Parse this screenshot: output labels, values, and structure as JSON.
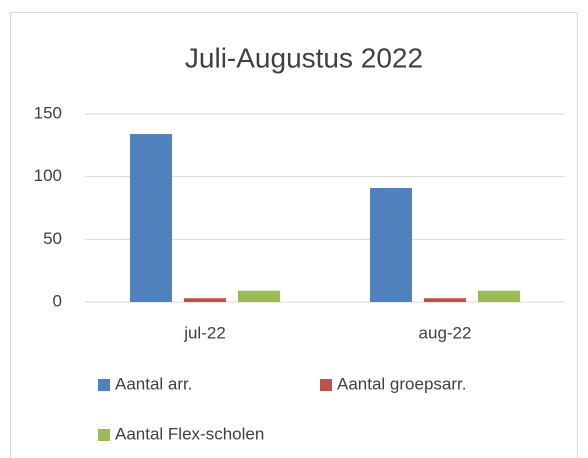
{
  "chart_data": {
    "type": "bar",
    "title": "Juli-Augustus 2022",
    "categories": [
      "jul-22",
      "aug-22"
    ],
    "series": [
      {
        "name": "Aantal arr.",
        "color": "#4f81bd",
        "values": [
          134,
          91
        ]
      },
      {
        "name": "Aantal groepsarr.",
        "color": "#c0504d",
        "values": [
          3,
          3
        ]
      },
      {
        "name": "Aantal Flex-scholen",
        "color": "#9bbb59",
        "values": [
          9,
          9
        ]
      }
    ],
    "ylim": [
      0,
      150
    ],
    "yticks": [
      0,
      50,
      100,
      150
    ],
    "grid": true,
    "legend": "bottom"
  }
}
